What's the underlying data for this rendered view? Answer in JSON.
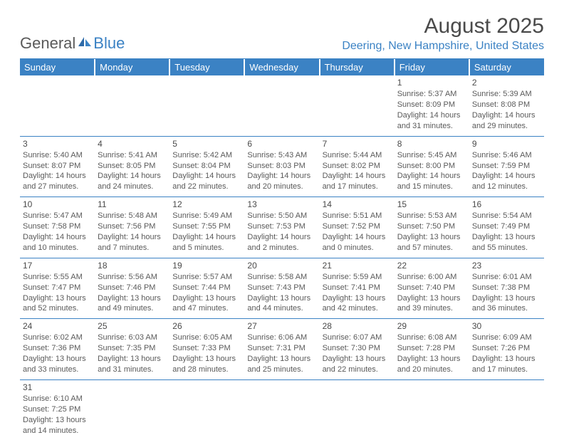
{
  "logo": {
    "general": "General",
    "blue": "Blue"
  },
  "title": "August 2025",
  "location": "Deering, New Hampshire, United States",
  "weekdays": [
    "Sunday",
    "Monday",
    "Tuesday",
    "Wednesday",
    "Thursday",
    "Friday",
    "Saturday"
  ],
  "colors": {
    "accent": "#3b82c4",
    "text": "#4a4a4a",
    "background": "#ffffff"
  },
  "weeks": [
    [
      null,
      null,
      null,
      null,
      null,
      {
        "d": "1",
        "sr": "5:37 AM",
        "ss": "8:09 PM",
        "dl": "14 hours and 31 minutes."
      },
      {
        "d": "2",
        "sr": "5:39 AM",
        "ss": "8:08 PM",
        "dl": "14 hours and 29 minutes."
      }
    ],
    [
      {
        "d": "3",
        "sr": "5:40 AM",
        "ss": "8:07 PM",
        "dl": "14 hours and 27 minutes."
      },
      {
        "d": "4",
        "sr": "5:41 AM",
        "ss": "8:05 PM",
        "dl": "14 hours and 24 minutes."
      },
      {
        "d": "5",
        "sr": "5:42 AM",
        "ss": "8:04 PM",
        "dl": "14 hours and 22 minutes."
      },
      {
        "d": "6",
        "sr": "5:43 AM",
        "ss": "8:03 PM",
        "dl": "14 hours and 20 minutes."
      },
      {
        "d": "7",
        "sr": "5:44 AM",
        "ss": "8:02 PM",
        "dl": "14 hours and 17 minutes."
      },
      {
        "d": "8",
        "sr": "5:45 AM",
        "ss": "8:00 PM",
        "dl": "14 hours and 15 minutes."
      },
      {
        "d": "9",
        "sr": "5:46 AM",
        "ss": "7:59 PM",
        "dl": "14 hours and 12 minutes."
      }
    ],
    [
      {
        "d": "10",
        "sr": "5:47 AM",
        "ss": "7:58 PM",
        "dl": "14 hours and 10 minutes."
      },
      {
        "d": "11",
        "sr": "5:48 AM",
        "ss": "7:56 PM",
        "dl": "14 hours and 7 minutes."
      },
      {
        "d": "12",
        "sr": "5:49 AM",
        "ss": "7:55 PM",
        "dl": "14 hours and 5 minutes."
      },
      {
        "d": "13",
        "sr": "5:50 AM",
        "ss": "7:53 PM",
        "dl": "14 hours and 2 minutes."
      },
      {
        "d": "14",
        "sr": "5:51 AM",
        "ss": "7:52 PM",
        "dl": "14 hours and 0 minutes."
      },
      {
        "d": "15",
        "sr": "5:53 AM",
        "ss": "7:50 PM",
        "dl": "13 hours and 57 minutes."
      },
      {
        "d": "16",
        "sr": "5:54 AM",
        "ss": "7:49 PM",
        "dl": "13 hours and 55 minutes."
      }
    ],
    [
      {
        "d": "17",
        "sr": "5:55 AM",
        "ss": "7:47 PM",
        "dl": "13 hours and 52 minutes."
      },
      {
        "d": "18",
        "sr": "5:56 AM",
        "ss": "7:46 PM",
        "dl": "13 hours and 49 minutes."
      },
      {
        "d": "19",
        "sr": "5:57 AM",
        "ss": "7:44 PM",
        "dl": "13 hours and 47 minutes."
      },
      {
        "d": "20",
        "sr": "5:58 AM",
        "ss": "7:43 PM",
        "dl": "13 hours and 44 minutes."
      },
      {
        "d": "21",
        "sr": "5:59 AM",
        "ss": "7:41 PM",
        "dl": "13 hours and 42 minutes."
      },
      {
        "d": "22",
        "sr": "6:00 AM",
        "ss": "7:40 PM",
        "dl": "13 hours and 39 minutes."
      },
      {
        "d": "23",
        "sr": "6:01 AM",
        "ss": "7:38 PM",
        "dl": "13 hours and 36 minutes."
      }
    ],
    [
      {
        "d": "24",
        "sr": "6:02 AM",
        "ss": "7:36 PM",
        "dl": "13 hours and 33 minutes."
      },
      {
        "d": "25",
        "sr": "6:03 AM",
        "ss": "7:35 PM",
        "dl": "13 hours and 31 minutes."
      },
      {
        "d": "26",
        "sr": "6:05 AM",
        "ss": "7:33 PM",
        "dl": "13 hours and 28 minutes."
      },
      {
        "d": "27",
        "sr": "6:06 AM",
        "ss": "7:31 PM",
        "dl": "13 hours and 25 minutes."
      },
      {
        "d": "28",
        "sr": "6:07 AM",
        "ss": "7:30 PM",
        "dl": "13 hours and 22 minutes."
      },
      {
        "d": "29",
        "sr": "6:08 AM",
        "ss": "7:28 PM",
        "dl": "13 hours and 20 minutes."
      },
      {
        "d": "30",
        "sr": "6:09 AM",
        "ss": "7:26 PM",
        "dl": "13 hours and 17 minutes."
      }
    ],
    [
      {
        "d": "31",
        "sr": "6:10 AM",
        "ss": "7:25 PM",
        "dl": "13 hours and 14 minutes."
      },
      null,
      null,
      null,
      null,
      null,
      null
    ]
  ],
  "labels": {
    "sunrise": "Sunrise: ",
    "sunset": "Sunset: ",
    "daylight": "Daylight: "
  }
}
